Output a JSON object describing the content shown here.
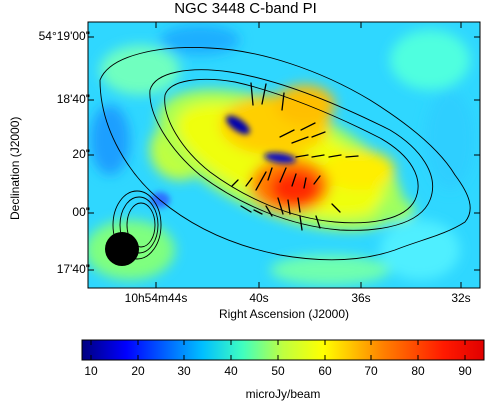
{
  "figure": {
    "title": "NGC 3448    C-band    PI",
    "xlabel": "Right Ascension (J2000)",
    "ylabel": "Declination (J2000)",
    "x_ticks": [
      "10h54m44s",
      "40s",
      "36s",
      "32s"
    ],
    "y_ticks": [
      "54°19'00\"",
      "18'40\"",
      "20\"",
      "00\"",
      "17'40\""
    ],
    "colorbar": {
      "label": "microJy/beam",
      "ticks": [
        "10",
        "20",
        "30",
        "40",
        "50",
        "60",
        "70",
        "80",
        "90"
      ],
      "range": [
        8,
        94
      ],
      "colormap": [
        "#00007f",
        "#0000ff",
        "#007fff",
        "#00ffff",
        "#7fff7f",
        "#ffff00",
        "#ff7f00",
        "#ff0000",
        "#7f0000"
      ]
    },
    "beam_color": "#000000"
  }
}
